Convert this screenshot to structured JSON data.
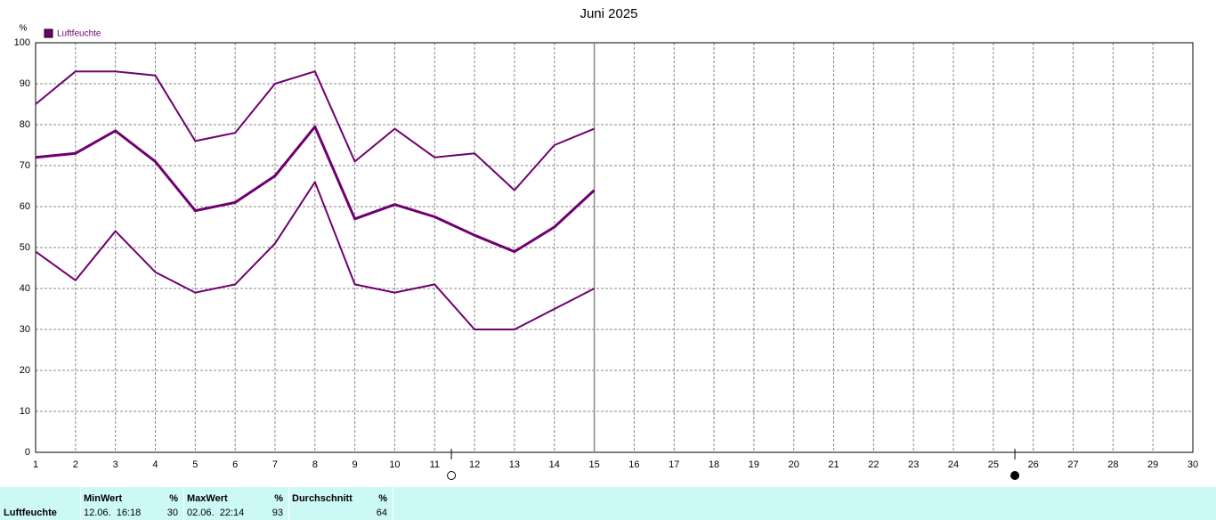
{
  "chart_data": {
    "type": "line",
    "title": "Juni 2025",
    "y_label": "%",
    "x": [
      1,
      2,
      3,
      4,
      5,
      6,
      7,
      8,
      9,
      10,
      11,
      12,
      13,
      14,
      15
    ],
    "series": [
      {
        "name": "Luftfeuchte",
        "color": "#6f006f",
        "values": [
          72,
          73,
          78.5,
          71,
          59,
          61,
          67.5,
          79.5,
          57,
          60.5,
          57.5,
          53,
          49,
          55,
          64
        ],
        "upper": [
          85,
          93,
          93,
          92,
          76,
          78,
          90,
          93,
          71,
          79,
          72,
          73,
          64,
          75,
          79
        ],
        "lower": [
          49,
          42,
          54,
          44,
          39,
          41,
          51,
          66,
          41,
          39,
          41,
          30,
          30,
          35,
          40
        ]
      }
    ],
    "xlim": [
      1,
      30
    ],
    "xticks": [
      1,
      2,
      3,
      4,
      5,
      6,
      7,
      8,
      9,
      10,
      11,
      12,
      13,
      14,
      15,
      16,
      17,
      18,
      19,
      20,
      21,
      22,
      23,
      24,
      25,
      26,
      27,
      28,
      29,
      30
    ],
    "ylim": [
      0,
      100
    ],
    "yticks": [
      0,
      10,
      20,
      30,
      40,
      50,
      60,
      70,
      80,
      90,
      100
    ],
    "grid": true,
    "now_line": 15,
    "moon_phases": [
      {
        "x": 11.42,
        "phase": "full"
      },
      {
        "x": 25.54,
        "phase": "new"
      }
    ]
  },
  "summary": {
    "label": "Luftfeuchte",
    "columns": [
      {
        "header": "MinWert",
        "unit": "%",
        "time": "12.06.  16:18",
        "value": "30"
      },
      {
        "header": "MaxWert",
        "unit": "%",
        "time": "02.06.  22:14",
        "value": "93"
      },
      {
        "header": "Durchschnitt",
        "unit": "%",
        "time": "",
        "value": "64"
      }
    ]
  }
}
